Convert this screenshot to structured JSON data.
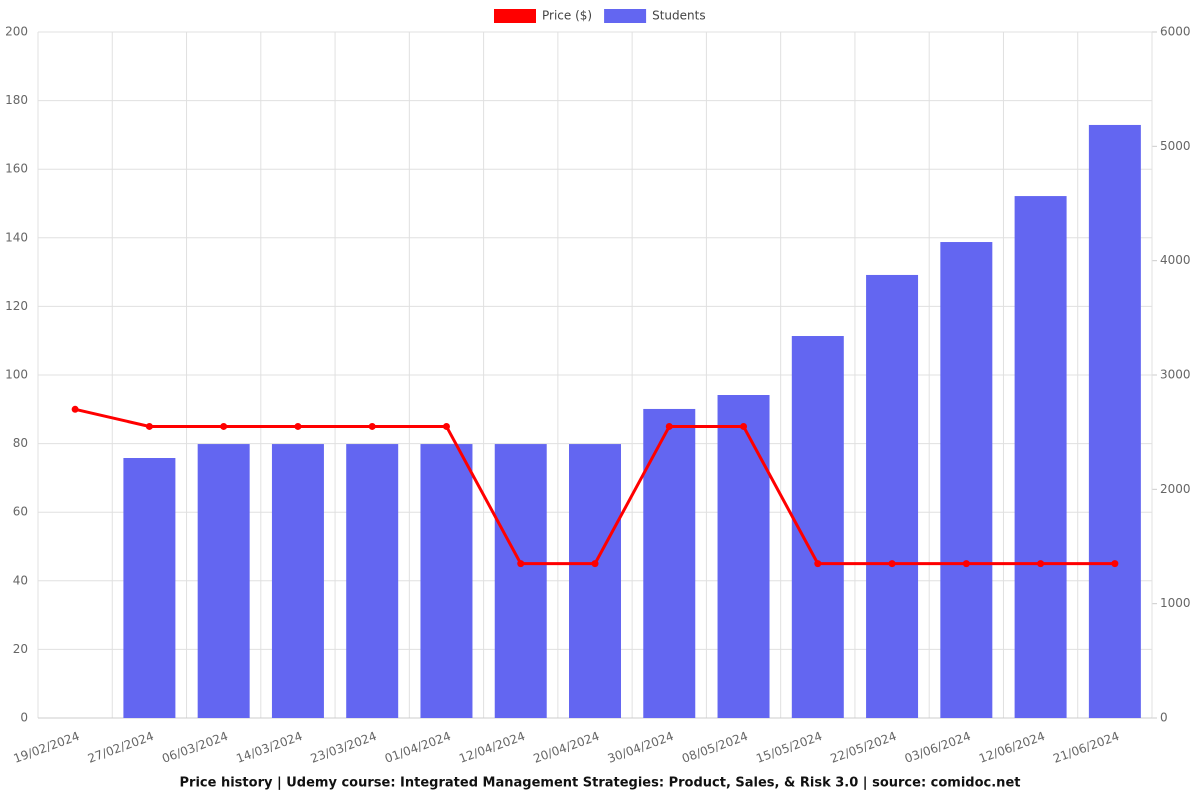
{
  "chart_data": {
    "type": "bar-line",
    "title": "Price history | Udemy course: Integrated Management Strategies: Product, Sales, & Risk 3.0 | source: comidoc.net",
    "categories": [
      "19/02/2024",
      "27/02/2024",
      "06/03/2024",
      "14/03/2024",
      "23/03/2024",
      "01/04/2024",
      "12/04/2024",
      "20/04/2024",
      "30/04/2024",
      "08/05/2024",
      "15/05/2024",
      "22/05/2024",
      "03/06/2024",
      "12/06/2024",
      "21/06/2024"
    ],
    "series": [
      {
        "name": "Price ($)",
        "color": "#ff0000",
        "kind": "line",
        "axis": "y",
        "values": [
          90,
          85,
          85,
          85,
          85,
          85,
          45,
          45,
          85,
          85,
          45,
          45,
          45,
          45,
          45
        ]
      },
      {
        "name": "Students",
        "color": "#6366f1",
        "kind": "bar",
        "axis": "y2",
        "values": [
          0,
          2274,
          2396,
          2396,
          2396,
          2396,
          2396,
          2396,
          2703,
          2825,
          3341,
          3875,
          4163,
          4565,
          5187
        ]
      }
    ],
    "ylim": [
      0,
      200
    ],
    "yticks": [
      0,
      20,
      40,
      60,
      80,
      100,
      120,
      140,
      160,
      180,
      200
    ],
    "y2lim": [
      0,
      6000
    ],
    "y2ticks": [
      0,
      1000,
      2000,
      3000,
      4000,
      5000,
      6000
    ],
    "grid": true
  }
}
